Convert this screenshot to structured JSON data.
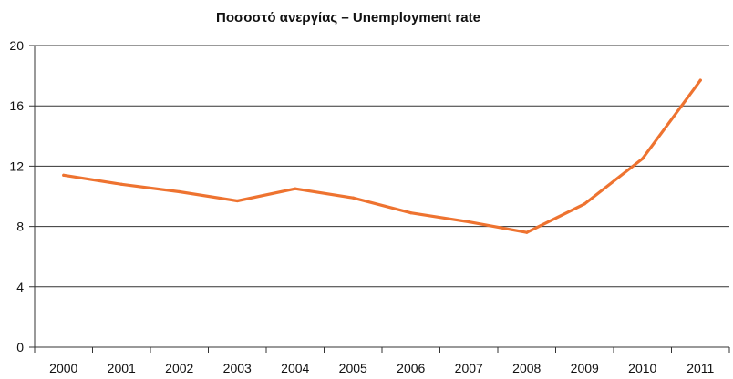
{
  "chart_data": {
    "type": "line",
    "title": "Ποσοστό ανεργίας – Unemployment rate",
    "xlabel": "",
    "ylabel": "",
    "categories": [
      "2000",
      "2001",
      "2002",
      "2003",
      "2004",
      "2005",
      "2006",
      "2007",
      "2008",
      "2009",
      "2010",
      "2011"
    ],
    "series": [
      {
        "values": [
          11.4,
          10.8,
          10.3,
          9.7,
          10.5,
          9.9,
          8.9,
          8.3,
          7.6,
          9.5,
          12.5,
          17.7
        ]
      }
    ],
    "ylim": [
      0,
      20
    ],
    "yticks": [
      "0",
      "4",
      "8",
      "12",
      "16",
      "20"
    ],
    "grid": true,
    "line_color": "#ee7330",
    "grid_color": "#333333"
  }
}
